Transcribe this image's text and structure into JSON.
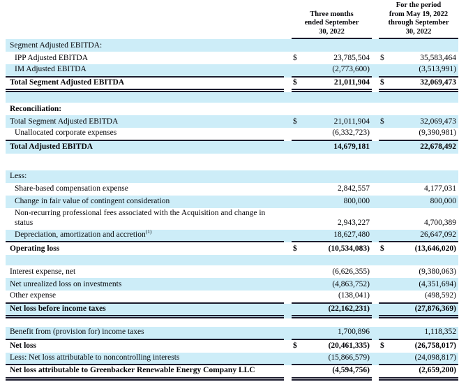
{
  "theme": {
    "row_highlight_color": "#cdedf8",
    "rule_color": "#1c1c2e",
    "text_color": "#06060a",
    "background_color": "#ffffff"
  },
  "table": {
    "columns": [
      {
        "label": "Three months\nended September\n30, 2022"
      },
      {
        "label": "For the period\nfrom May 19, 2022\nthrough September\n30, 2022"
      }
    ],
    "rows": [
      {
        "type": "data",
        "label": "Segment Adjusted EBITDA:",
        "bg": "blue",
        "bold": false,
        "indent": false,
        "cells": [
          {
            "dollar": "",
            "value": ""
          },
          {
            "dollar": "",
            "value": ""
          }
        ],
        "rule": ""
      },
      {
        "type": "data",
        "label": "IPP Adjusted EBITDA",
        "bg": "white",
        "bold": false,
        "indent": true,
        "cells": [
          {
            "dollar": "$",
            "value": "23,785,504"
          },
          {
            "dollar": "$",
            "value": "35,583,464"
          }
        ],
        "rule": ""
      },
      {
        "type": "data",
        "label": "IM Adjusted EBITDA",
        "bg": "blue",
        "bold": false,
        "indent": true,
        "cells": [
          {
            "dollar": "",
            "value": "(2,773,600)"
          },
          {
            "dollar": "",
            "value": "(3,513,991)"
          }
        ],
        "rule": "single"
      },
      {
        "type": "data",
        "label": "Total Segment Adjusted EBITDA",
        "bg": "white",
        "bold": true,
        "indent": false,
        "cells": [
          {
            "dollar": "$",
            "value": "21,011,904"
          },
          {
            "dollar": "$",
            "value": "32,069,473"
          }
        ],
        "rule": "double"
      },
      {
        "type": "spacer",
        "bg": "blue",
        "height": 15
      },
      {
        "type": "data",
        "label": "Reconciliation:",
        "bg": "white",
        "bold": true,
        "indent": false,
        "cells": [
          {
            "dollar": "",
            "value": ""
          },
          {
            "dollar": "",
            "value": ""
          }
        ],
        "rule": ""
      },
      {
        "type": "data",
        "label": "Total Segment Adjusted EBITDA",
        "bg": "blue",
        "bold": false,
        "indent": false,
        "cells": [
          {
            "dollar": "$",
            "value": "21,011,904"
          },
          {
            "dollar": "$",
            "value": "32,069,473"
          }
        ],
        "rule": ""
      },
      {
        "type": "data",
        "label": "Unallocated corporate expenses",
        "bg": "white",
        "bold": false,
        "indent": true,
        "cells": [
          {
            "dollar": "",
            "value": "(6,332,723)"
          },
          {
            "dollar": "",
            "value": "(9,390,981)"
          }
        ],
        "rule": "single"
      },
      {
        "type": "data",
        "label": "Total Adjusted EBITDA",
        "bg": "blue",
        "bold": true,
        "indent": false,
        "cells": [
          {
            "dollar": "",
            "value": "14,679,181"
          },
          {
            "dollar": "",
            "value": "22,678,492"
          }
        ],
        "rule": ""
      },
      {
        "type": "spacer",
        "bg": "white",
        "height": 24
      },
      {
        "type": "data",
        "label": "Less:",
        "bg": "blue",
        "bold": false,
        "indent": false,
        "cells": [
          {
            "dollar": "",
            "value": ""
          },
          {
            "dollar": "",
            "value": ""
          }
        ],
        "rule": ""
      },
      {
        "type": "data",
        "label": "Share-based compensation expense",
        "bg": "white",
        "bold": false,
        "indent": true,
        "cells": [
          {
            "dollar": "",
            "value": "2,842,557"
          },
          {
            "dollar": "",
            "value": "4,177,031"
          }
        ],
        "rule": ""
      },
      {
        "type": "data",
        "label": "Change in fair value of contingent consideration",
        "bg": "blue",
        "bold": false,
        "indent": true,
        "cells": [
          {
            "dollar": "",
            "value": "800,000"
          },
          {
            "dollar": "",
            "value": "800,000"
          }
        ],
        "rule": ""
      },
      {
        "type": "data",
        "label": "Non-recurring professional fees associated with the Acquisition and change in status",
        "bg": "white",
        "bold": false,
        "indent": true,
        "cells": [
          {
            "dollar": "",
            "value": "2,943,227"
          },
          {
            "dollar": "",
            "value": "4,700,389"
          }
        ],
        "rule": ""
      },
      {
        "type": "data",
        "label": "Depreciation, amortization and accretion",
        "sup": "(1)",
        "bg": "blue",
        "bold": false,
        "indent": true,
        "cells": [
          {
            "dollar": "",
            "value": "18,627,480"
          },
          {
            "dollar": "",
            "value": "26,647,092"
          }
        ],
        "rule": "single"
      },
      {
        "type": "data",
        "label": "Operating loss",
        "bg": "white",
        "bold": true,
        "indent": false,
        "cells": [
          {
            "dollar": "$",
            "value": "(10,534,083)"
          },
          {
            "dollar": "$",
            "value": "(13,646,020)"
          }
        ],
        "rule": ""
      },
      {
        "type": "spacer",
        "bg": "blue",
        "height": 15
      },
      {
        "type": "data",
        "label": "Interest expense, net",
        "bg": "white",
        "bold": false,
        "indent": false,
        "cells": [
          {
            "dollar": "",
            "value": "(6,626,355)"
          },
          {
            "dollar": "",
            "value": "(9,380,063)"
          }
        ],
        "rule": ""
      },
      {
        "type": "data",
        "label": "Net unrealized loss on investments",
        "bg": "blue",
        "bold": false,
        "indent": false,
        "cells": [
          {
            "dollar": "",
            "value": "(4,863,752)"
          },
          {
            "dollar": "",
            "value": "(4,351,694)"
          }
        ],
        "rule": ""
      },
      {
        "type": "data",
        "label": "Other expense",
        "bg": "white",
        "bold": false,
        "indent": false,
        "cells": [
          {
            "dollar": "",
            "value": "(138,041)"
          },
          {
            "dollar": "",
            "value": "(498,592)"
          }
        ],
        "rule": "single"
      },
      {
        "type": "data",
        "label": "Net loss before income taxes",
        "bg": "blue",
        "bold": true,
        "indent": false,
        "cells": [
          {
            "dollar": "",
            "value": "(22,162,231)"
          },
          {
            "dollar": "",
            "value": "(27,876,369)"
          }
        ],
        "rule": "double"
      },
      {
        "type": "spacer",
        "bg": "white",
        "height": 12
      },
      {
        "type": "data",
        "label": "Benefit from (provision for) income taxes",
        "bg": "blue",
        "bold": false,
        "indent": false,
        "cells": [
          {
            "dollar": "",
            "value": "1,700,896"
          },
          {
            "dollar": "",
            "value": "1,118,352"
          }
        ],
        "rule": "single"
      },
      {
        "type": "data",
        "label": "Net loss",
        "bg": "white",
        "bold": true,
        "indent": false,
        "cells": [
          {
            "dollar": "$",
            "value": "(20,461,335)"
          },
          {
            "dollar": "$",
            "value": "(26,758,017)"
          }
        ],
        "rule": ""
      },
      {
        "type": "data",
        "label": "Less: Net loss attributable to noncontrolling interests",
        "bg": "blue",
        "bold": false,
        "indent": false,
        "cells": [
          {
            "dollar": "",
            "value": "(15,866,579)"
          },
          {
            "dollar": "",
            "value": "(24,098,817)"
          }
        ],
        "rule": "single"
      },
      {
        "type": "data",
        "label": "Net loss attributable to Greenbacker Renewable Energy Company LLC",
        "bg": "white",
        "bold": true,
        "indent": false,
        "cells": [
          {
            "dollar": "",
            "value": "(4,594,756)"
          },
          {
            "dollar": "",
            "value": "(2,659,200)"
          }
        ],
        "rule": "double"
      }
    ]
  }
}
